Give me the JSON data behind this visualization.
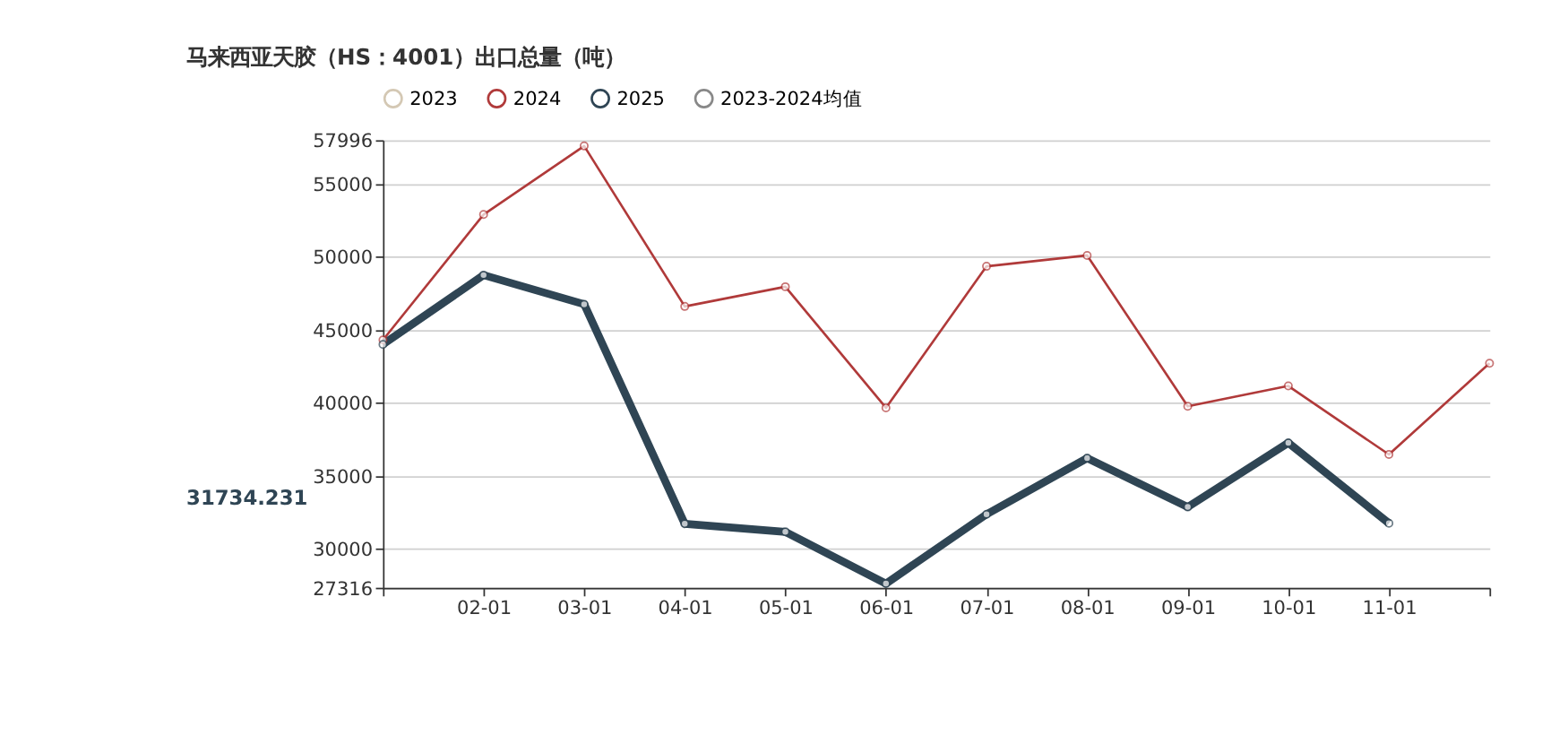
{
  "chart_data": {
    "type": "line",
    "title": "马来西亚天胶（HS：4001）出口总量（吨）",
    "categories": [
      null,
      "02-01",
      "03-01",
      "04-01",
      "05-01",
      "06-01",
      "07-01",
      "08-01",
      "09-01",
      "10-01",
      "11-01",
      null
    ],
    "series": [
      {
        "name": "2023",
        "color": "#d4c8b4",
        "values": [
          null,
          null,
          null,
          null,
          null,
          null,
          null,
          null,
          null,
          null,
          null,
          null
        ]
      },
      {
        "name": "2024",
        "color": "#b03a3a",
        "values": [
          44300,
          52900,
          57600,
          46600,
          47950,
          39650,
          49350,
          50100,
          39750,
          41150,
          36450,
          42700
        ]
      },
      {
        "name": "2025",
        "color": "#2f4554",
        "values": [
          44000,
          48750,
          46750,
          31700,
          31150,
          27600,
          32350,
          36200,
          32850,
          37250,
          31734.231,
          null
        ]
      },
      {
        "name": "2023-2024均值",
        "color": "#888888",
        "values": [
          null,
          null,
          null,
          null,
          null,
          null,
          null,
          null,
          null,
          null,
          null,
          null
        ]
      }
    ],
    "ylim": [
      27316,
      57996
    ],
    "yticks": [
      27316,
      30000,
      35000,
      40000,
      45000,
      50000,
      55000,
      57996
    ],
    "grid": "y",
    "legend": "top",
    "marker": "circle",
    "annotations": [
      "31734.231"
    ]
  }
}
